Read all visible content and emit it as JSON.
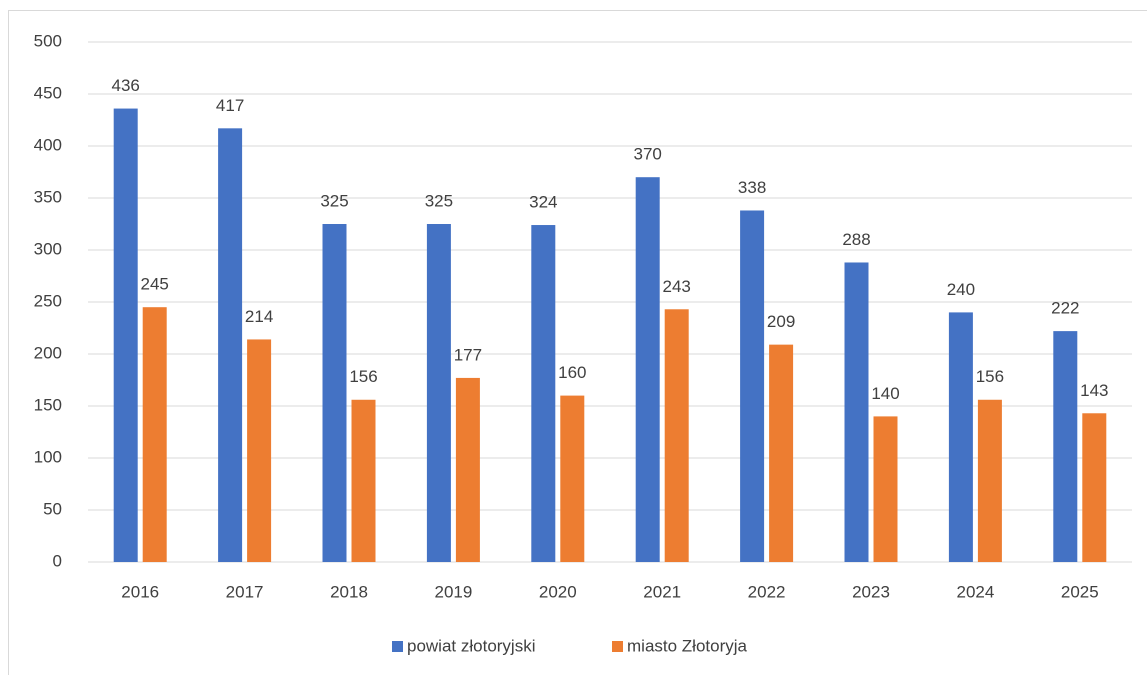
{
  "chart_data": {
    "type": "bar",
    "categories": [
      "2016",
      "2017",
      "2018",
      "2019",
      "2020",
      "2021",
      "2022",
      "2023",
      "2024",
      "2025"
    ],
    "series": [
      {
        "name": "powiat złotoryjski",
        "color": "#4472c4",
        "values": [
          436,
          417,
          325,
          325,
          324,
          370,
          338,
          288,
          240,
          222
        ]
      },
      {
        "name": "miasto Złotoryja",
        "color": "#ed7d31",
        "values": [
          245,
          214,
          156,
          177,
          160,
          243,
          209,
          140,
          156,
          143
        ]
      }
    ],
    "ylim": [
      0,
      500
    ],
    "yticks": [
      0,
      50,
      100,
      150,
      200,
      250,
      300,
      350,
      400,
      450,
      500
    ],
    "grid": true,
    "legend": "bottom"
  }
}
